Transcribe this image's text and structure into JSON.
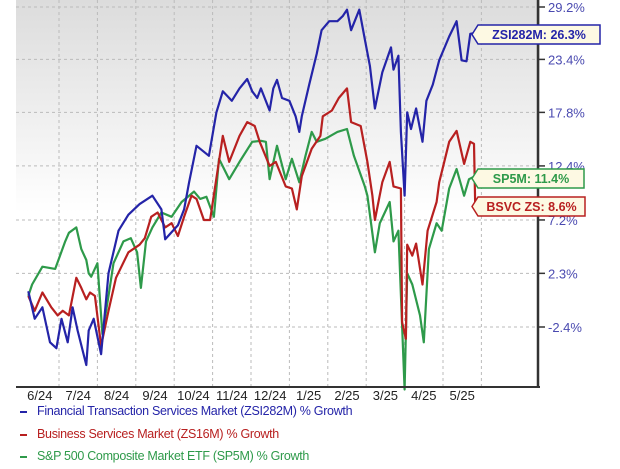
{
  "chart_data": {
    "type": "line",
    "y_scale": "log (growth index)",
    "y_ticks": [
      "29.2%",
      "23.4%",
      "17.8%",
      "12.4%",
      "7.2%",
      "2.3%",
      "-2.4%"
    ],
    "y_tick_values": [
      29.2,
      23.4,
      17.8,
      12.4,
      7.2,
      2.3,
      -2.4
    ],
    "x_ticks": [
      "6/24",
      "7/24",
      "8/24",
      "9/24",
      "10/24",
      "11/24",
      "12/24",
      "1/25",
      "2/25",
      "3/25",
      "4/25",
      "5/25"
    ],
    "grid": true,
    "legend_placement": "bottom",
    "series": [
      {
        "name": "Financial Transaction Services Market (ZSI282M) % Growth",
        "color": "#2424a8",
        "label": "ZSI282M: 26.3%",
        "points": [
          [
            "2024-06-07",
            0.7
          ],
          [
            "2024-06-12",
            -1.7
          ],
          [
            "2024-06-18",
            -0.7
          ],
          [
            "2024-06-24",
            -3.7
          ],
          [
            "2024-06-29",
            -4.2
          ],
          [
            "2024-07-03",
            -1.7
          ],
          [
            "2024-07-08",
            -3.7
          ],
          [
            "2024-07-12",
            -0.7
          ],
          [
            "2024-07-16",
            -2.7
          ],
          [
            "2024-07-23",
            -5.6
          ],
          [
            "2024-07-25",
            -2.7
          ],
          [
            "2024-07-29",
            -1.7
          ],
          [
            "2024-08-04",
            -4.7
          ],
          [
            "2024-08-10",
            2.3
          ],
          [
            "2024-08-18",
            6.2
          ],
          [
            "2024-08-26",
            7.7
          ],
          [
            "2024-09-04",
            8.7
          ],
          [
            "2024-09-14",
            9.5
          ],
          [
            "2024-09-21",
            8.2
          ],
          [
            "2024-09-24",
            5.4
          ],
          [
            "2024-10-04",
            6.7
          ],
          [
            "2024-10-09",
            8.2
          ],
          [
            "2024-10-13",
            10.8
          ],
          [
            "2024-10-19",
            14.4
          ],
          [
            "2024-10-29",
            13.4
          ],
          [
            "2024-11-04",
            17.8
          ],
          [
            "2024-11-09",
            20.0
          ],
          [
            "2024-11-16",
            19.0
          ],
          [
            "2024-11-22",
            20.3
          ],
          [
            "2024-11-28",
            21.3
          ],
          [
            "2024-12-02",
            20.0
          ],
          [
            "2024-12-06",
            19.3
          ],
          [
            "2024-12-09",
            20.3
          ],
          [
            "2024-12-16",
            18.0
          ],
          [
            "2024-12-19",
            20.3
          ],
          [
            "2024-12-22",
            21.2
          ],
          [
            "2024-12-26",
            19.3
          ],
          [
            "2025-01-01",
            19.0
          ],
          [
            "2025-01-06",
            17.4
          ],
          [
            "2025-01-09",
            15.8
          ],
          [
            "2025-01-11",
            17.4
          ],
          [
            "2025-01-17",
            20.7
          ],
          [
            "2025-01-23",
            24.0
          ],
          [
            "2025-01-27",
            26.6
          ],
          [
            "2025-02-02",
            27.6
          ],
          [
            "2025-02-08",
            27.6
          ],
          [
            "2025-02-12",
            28.2
          ],
          [
            "2025-02-15",
            28.9
          ],
          [
            "2025-02-18",
            26.6
          ],
          [
            "2025-02-24",
            28.9
          ],
          [
            "2025-02-28",
            25.6
          ],
          [
            "2025-03-04",
            22.7
          ],
          [
            "2025-03-08",
            18.2
          ],
          [
            "2025-03-14",
            22.0
          ],
          [
            "2025-03-21",
            24.7
          ],
          [
            "2025-03-23",
            22.3
          ],
          [
            "2025-03-27",
            23.8
          ],
          [
            "2025-03-29",
            15.8
          ],
          [
            "2025-04-01",
            9.5
          ],
          [
            "2025-04-03",
            17.8
          ],
          [
            "2025-04-06",
            16.1
          ],
          [
            "2025-04-10",
            18.2
          ],
          [
            "2025-04-15",
            14.8
          ],
          [
            "2025-04-18",
            19.0
          ],
          [
            "2025-04-23",
            20.7
          ],
          [
            "2025-04-28",
            23.3
          ],
          [
            "2025-05-06",
            25.9
          ],
          [
            "2025-05-12",
            27.6
          ],
          [
            "2025-05-16",
            23.3
          ],
          [
            "2025-05-20",
            23.2
          ],
          [
            "2025-05-23",
            26.2
          ],
          [
            "2025-05-27",
            26.3
          ]
        ]
      },
      {
        "name": "Business Services Market (ZS16M) % Growth",
        "color": "#b82020",
        "label": "BSVC ZS: 8.6%",
        "points": [
          [
            "2024-06-07",
            0.3
          ],
          [
            "2024-06-12",
            -1.0
          ],
          [
            "2024-06-18",
            0.6
          ],
          [
            "2024-06-25",
            -0.7
          ],
          [
            "2024-06-30",
            -1.4
          ],
          [
            "2024-07-04",
            -1.0
          ],
          [
            "2024-07-09",
            -1.4
          ],
          [
            "2024-07-15",
            1.9
          ],
          [
            "2024-07-19",
            1.0
          ],
          [
            "2024-07-23",
            0.0
          ],
          [
            "2024-07-26",
            0.6
          ],
          [
            "2024-07-30",
            0.3
          ],
          [
            "2024-08-04",
            -4.0
          ],
          [
            "2024-08-10",
            -1.0
          ],
          [
            "2024-08-16",
            1.9
          ],
          [
            "2024-08-26",
            4.2
          ],
          [
            "2024-09-04",
            4.9
          ],
          [
            "2024-09-08",
            5.5
          ],
          [
            "2024-09-13",
            7.5
          ],
          [
            "2024-09-18",
            7.9
          ],
          [
            "2024-09-24",
            6.5
          ],
          [
            "2024-09-29",
            6.9
          ],
          [
            "2024-10-04",
            5.7
          ],
          [
            "2024-10-09",
            7.5
          ],
          [
            "2024-10-15",
            9.5
          ],
          [
            "2024-10-19",
            9.2
          ],
          [
            "2024-10-25",
            7.2
          ],
          [
            "2024-10-30",
            7.2
          ],
          [
            "2024-11-09",
            15.4
          ],
          [
            "2024-11-14",
            12.8
          ],
          [
            "2024-11-22",
            15.4
          ],
          [
            "2024-11-28",
            16.8
          ],
          [
            "2024-12-04",
            16.4
          ],
          [
            "2024-12-08",
            14.8
          ],
          [
            "2024-12-16",
            12.4
          ],
          [
            "2024-12-21",
            12.8
          ],
          [
            "2024-12-29",
            10.4
          ],
          [
            "2025-01-03",
            10.2
          ],
          [
            "2025-01-07",
            8.2
          ],
          [
            "2025-01-11",
            11.4
          ],
          [
            "2025-01-19",
            14.1
          ],
          [
            "2025-01-26",
            15.4
          ],
          [
            "2025-01-28",
            17.4
          ],
          [
            "2025-02-04",
            18.0
          ],
          [
            "2025-02-09",
            19.3
          ],
          [
            "2025-02-15",
            20.3
          ],
          [
            "2025-02-18",
            16.8
          ],
          [
            "2025-02-25",
            16.4
          ],
          [
            "2025-03-02",
            12.8
          ],
          [
            "2025-03-06",
            9.5
          ],
          [
            "2025-03-08",
            7.2
          ],
          [
            "2025-03-14",
            10.8
          ],
          [
            "2025-03-20",
            12.8
          ],
          [
            "2025-03-23",
            10.4
          ],
          [
            "2025-03-29",
            10.2
          ],
          [
            "2025-03-30",
            -2.0
          ],
          [
            "2025-04-02",
            -3.4
          ],
          [
            "2025-04-03",
            4.9
          ],
          [
            "2025-04-07",
            3.9
          ],
          [
            "2025-04-10",
            5.0
          ],
          [
            "2025-04-15",
            1.3
          ],
          [
            "2025-04-19",
            6.2
          ],
          [
            "2025-04-26",
            8.9
          ],
          [
            "2025-04-28",
            10.8
          ],
          [
            "2025-05-06",
            14.8
          ],
          [
            "2025-05-12",
            15.9
          ],
          [
            "2025-05-18",
            12.6
          ],
          [
            "2025-05-23",
            14.8
          ],
          [
            "2025-05-26",
            14.6
          ],
          [
            "2025-05-27",
            8.6
          ]
        ]
      },
      {
        "name": "S&P 500 Composite Market ETF (SP5M) % Growth",
        "color": "#2e9a4a",
        "label": "SP5M: 11.4%",
        "points": [
          [
            "2024-06-07",
            0.3
          ],
          [
            "2024-06-10",
            1.3
          ],
          [
            "2024-06-18",
            2.9
          ],
          [
            "2024-06-28",
            2.7
          ],
          [
            "2024-07-06",
            5.2
          ],
          [
            "2024-07-09",
            6.0
          ],
          [
            "2024-07-15",
            6.5
          ],
          [
            "2024-07-19",
            4.5
          ],
          [
            "2024-07-23",
            3.5
          ],
          [
            "2024-07-25",
            2.3
          ],
          [
            "2024-07-27",
            2.0
          ],
          [
            "2024-08-01",
            3.2
          ],
          [
            "2024-08-05",
            -3.0
          ],
          [
            "2024-08-10",
            0.3
          ],
          [
            "2024-08-14",
            3.2
          ],
          [
            "2024-08-22",
            5.2
          ],
          [
            "2024-08-28",
            5.5
          ],
          [
            "2024-09-02",
            4.2
          ],
          [
            "2024-09-05",
            1.0
          ],
          [
            "2024-09-09",
            5.2
          ],
          [
            "2024-09-14",
            6.5
          ],
          [
            "2024-09-21",
            7.9
          ],
          [
            "2024-09-29",
            7.5
          ],
          [
            "2024-10-07",
            8.9
          ],
          [
            "2024-10-17",
            9.9
          ],
          [
            "2024-10-22",
            9.2
          ],
          [
            "2024-10-27",
            9.4
          ],
          [
            "2024-11-02",
            7.5
          ],
          [
            "2024-11-06",
            13.1
          ],
          [
            "2024-11-14",
            11.1
          ],
          [
            "2024-11-22",
            12.8
          ],
          [
            "2024-12-02",
            14.8
          ],
          [
            "2024-12-09",
            14.9
          ],
          [
            "2024-12-13",
            14.8
          ],
          [
            "2024-12-16",
            11.1
          ],
          [
            "2024-12-22",
            14.4
          ],
          [
            "2024-12-29",
            11.1
          ],
          [
            "2025-01-03",
            13.1
          ],
          [
            "2025-01-09",
            10.8
          ],
          [
            "2025-01-14",
            13.4
          ],
          [
            "2025-01-19",
            15.8
          ],
          [
            "2025-01-23",
            14.8
          ],
          [
            "2025-01-30",
            15.1
          ],
          [
            "2025-02-08",
            15.8
          ],
          [
            "2025-02-15",
            16.1
          ],
          [
            "2025-02-20",
            13.4
          ],
          [
            "2025-02-28",
            10.4
          ],
          [
            "2025-03-02",
            9.5
          ],
          [
            "2025-03-08",
            4.2
          ],
          [
            "2025-03-12",
            6.9
          ],
          [
            "2025-03-20",
            8.9
          ],
          [
            "2025-03-23",
            5.2
          ],
          [
            "2025-03-27",
            6.2
          ],
          [
            "2025-04-01",
            -7.6
          ],
          [
            "2025-04-03",
            2.3
          ],
          [
            "2025-04-07",
            1.3
          ],
          [
            "2025-04-13",
            -1.4
          ],
          [
            "2025-04-16",
            -3.7
          ],
          [
            "2025-04-20",
            4.5
          ],
          [
            "2025-04-26",
            6.9
          ],
          [
            "2025-04-30",
            6.2
          ],
          [
            "2025-05-06",
            10.2
          ],
          [
            "2025-05-12",
            12.1
          ],
          [
            "2025-05-18",
            9.5
          ],
          [
            "2025-05-22",
            11.1
          ],
          [
            "2025-05-27",
            11.4
          ]
        ]
      }
    ]
  },
  "legend": {
    "items": [
      "Financial Transaction Services Market (ZSI282M) % Growth",
      "Business Services Market (ZS16M) % Growth",
      "S&P 500 Composite Market ETF (SP5M) % Growth"
    ]
  }
}
